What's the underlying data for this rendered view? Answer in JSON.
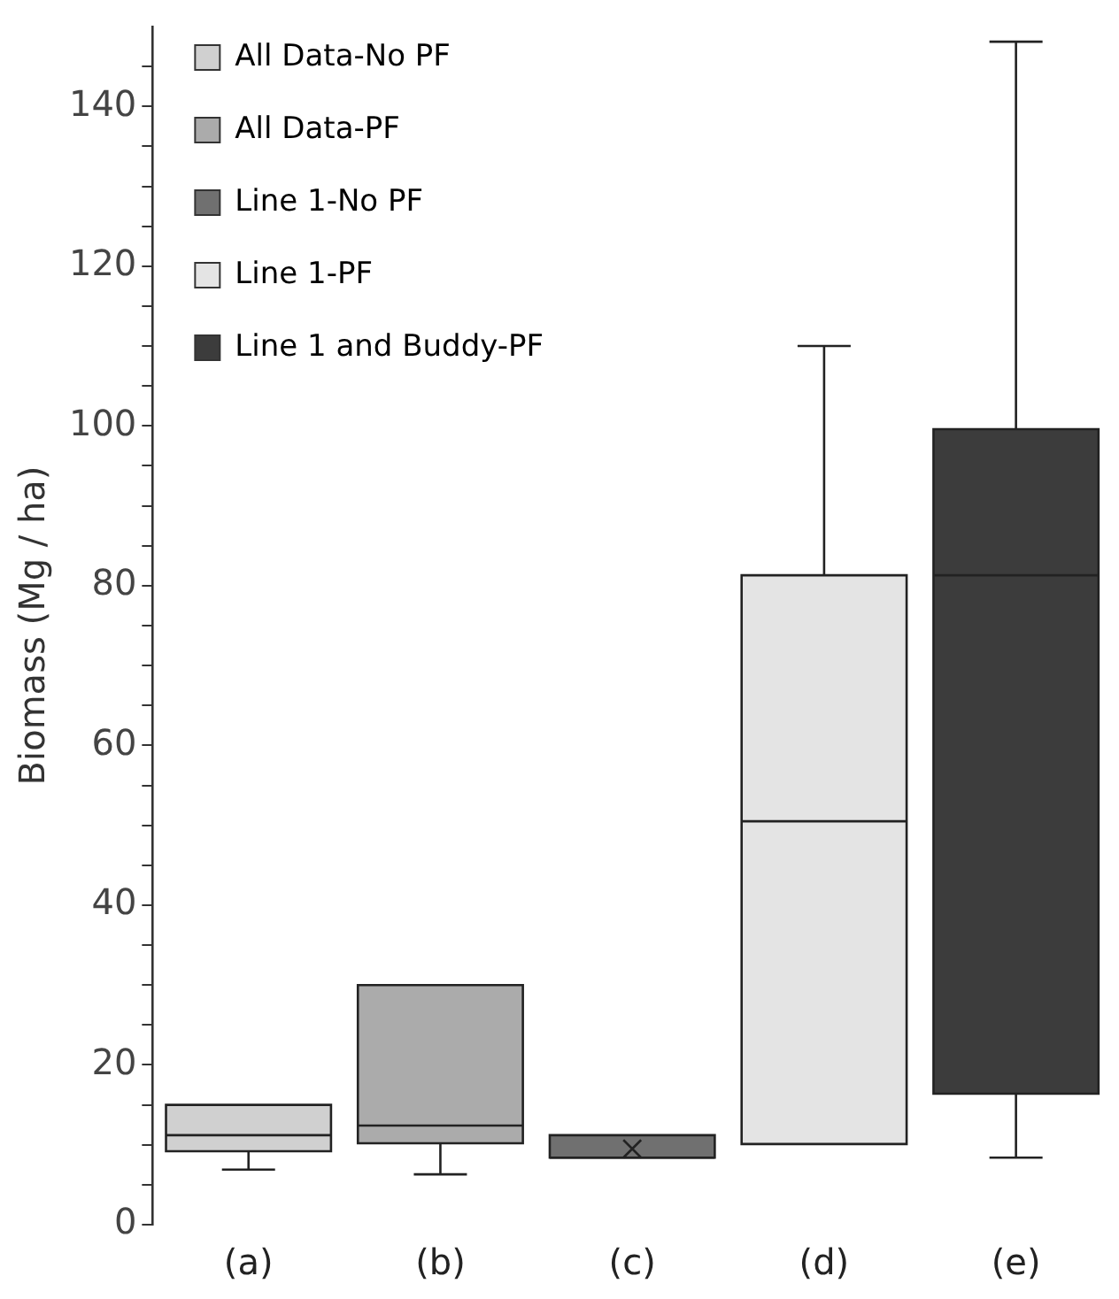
{
  "chart_data": {
    "type": "box",
    "ylabel": "Biomass (Mg / ha)",
    "categories": [
      "(a)",
      "(b)",
      "(c)",
      "(d)",
      "(e)"
    ],
    "series": [
      {
        "name": "All Data-No PF",
        "color": "#d0d0d0",
        "boxes": [
          {
            "low": 6.9,
            "q1": 9.2,
            "median": 11.2,
            "q3": 15,
            "high": 15
          },
          null,
          null,
          null,
          null
        ]
      },
      {
        "name": "All Data-PF",
        "color": "#ababab",
        "boxes": [
          null,
          {
            "low": 6.3,
            "q1": 10.2,
            "median": 12.4,
            "q3": 30,
            "high": 30
          },
          null,
          null,
          null
        ]
      },
      {
        "name": "Line 1-No PF",
        "color": "#707070",
        "boxes": [
          null,
          null,
          {
            "low": 8.4,
            "q1": 8.4,
            "median": 8.4,
            "q3": 11.2,
            "high": 11.2,
            "mean": 9.5
          },
          null,
          null
        ]
      },
      {
        "name": "Line 1-PF",
        "color": "#e4e4e4",
        "boxes": [
          null,
          null,
          null,
          {
            "low": 10.1,
            "q1": 10.1,
            "median": 50.5,
            "q3": 81.3,
            "high": 110
          },
          null
        ]
      },
      {
        "name": "Line 1 and Buddy-PF",
        "color": "#3c3c3c",
        "boxes": [
          null,
          null,
          null,
          null,
          {
            "low": 8.4,
            "q1": 16.4,
            "median": 81.3,
            "q3": 99.6,
            "high": 148.1
          }
        ]
      }
    ],
    "ylim": [
      0,
      150
    ],
    "yticks": [
      0,
      {
        "value": 5,
        "label": null
      },
      {
        "value": 10,
        "label": null
      },
      {
        "value": 15,
        "label": null
      },
      20,
      {
        "value": 25,
        "label": null
      },
      {
        "value": 30,
        "label": null
      },
      {
        "value": 35,
        "label": null
      },
      40,
      {
        "value": 45,
        "label": null
      },
      {
        "value": 50,
        "label": null
      },
      {
        "value": 55,
        "label": null
      },
      60,
      {
        "value": 65,
        "label": null
      },
      {
        "value": 70,
        "label": null
      },
      {
        "value": 75,
        "label": null
      },
      80,
      {
        "value": 85,
        "label": null
      },
      {
        "value": 90,
        "label": null
      },
      {
        "value": 95,
        "label": null
      },
      100,
      {
        "value": 105,
        "label": null
      },
      {
        "value": 110,
        "label": null
      },
      {
        "value": 115,
        "label": null
      },
      120,
      {
        "value": 125,
        "label": null
      },
      {
        "value": 130,
        "label": null
      },
      {
        "value": 135,
        "label": null
      },
      140,
      {
        "value": 145,
        "label": null
      }
    ],
    "grid": false,
    "legend": "top left"
  }
}
